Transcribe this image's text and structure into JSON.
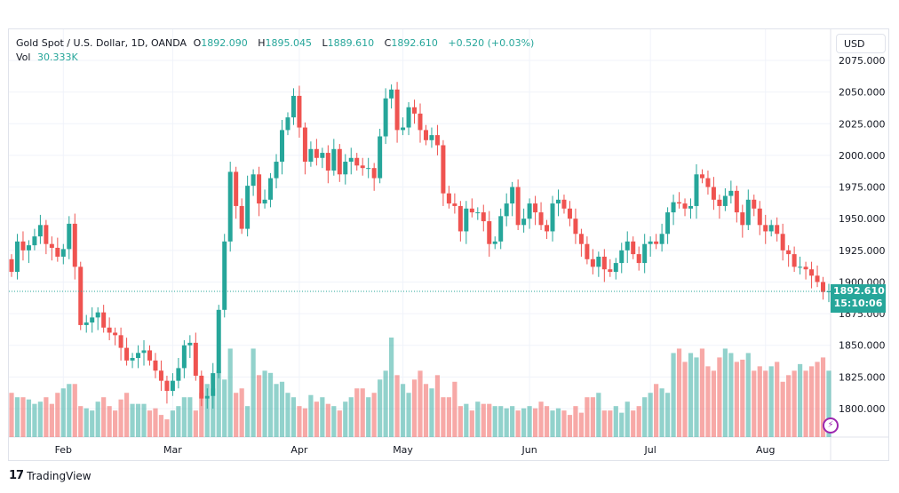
{
  "header": {
    "symbol": "Gold Spot / U.S. Dollar, 1D, OANDA",
    "o_label": "O",
    "open": "1892.090",
    "h_label": "H",
    "high": "1895.045",
    "l_label": "L",
    "low": "1889.610",
    "c_label": "C",
    "close": "1892.610",
    "change": "+0.520 (+0.03%)",
    "vol_label": "Vol",
    "vol": "30.333K"
  },
  "currency": "USD",
  "last_price": {
    "price": "1892.610",
    "countdown": "15:10:06"
  },
  "brand": "TradingView",
  "colors": {
    "up": "#26a69a",
    "down": "#ef5350",
    "grid": "#f0f3fa"
  },
  "chart_data": {
    "type": "candlestick",
    "title": "Gold Spot / U.S. Dollar, 1D, OANDA",
    "ylim": [
      1780,
      2085
    ],
    "yticks": [
      "2075.000",
      "2050.000",
      "2025.000",
      "2000.000",
      "1975.000",
      "1950.000",
      "1925.000",
      "1900.000",
      "1875.000",
      "1850.000",
      "1825.000",
      "1800.000"
    ],
    "ytick_values": [
      2075,
      2050,
      2025,
      2000,
      1975,
      1950,
      1925,
      1900,
      1875,
      1850,
      1825,
      1800
    ],
    "months": [
      {
        "label": "Feb",
        "index": 9
      },
      {
        "label": "Mar",
        "index": 28
      },
      {
        "label": "Apr",
        "index": 50
      },
      {
        "label": "May",
        "index": 68
      },
      {
        "label": "Jun",
        "index": 90
      },
      {
        "label": "Jul",
        "index": 111
      },
      {
        "label": "Aug",
        "index": 131
      }
    ],
    "first_open": 1918,
    "close": [
      1908,
      1932,
      1925,
      1929,
      1936,
      1945,
      1930,
      1927,
      1920,
      1926,
      1946,
      1912,
      1866,
      1868,
      1872,
      1876,
      1864,
      1860,
      1858,
      1848,
      1838,
      1840,
      1844,
      1846,
      1838,
      1830,
      1822,
      1814,
      1822,
      1832,
      1850,
      1852,
      1826,
      1808,
      1810,
      1828,
      1878,
      1932,
      1987,
      1960,
      1942,
      1976,
      1985,
      1962,
      1965,
      1982,
      1995,
      2020,
      2030,
      2047,
      2022,
      1995,
      2005,
      1998,
      2002,
      1988,
      2005,
      1985,
      1995,
      1998,
      1992,
      1990,
      1990,
      1982,
      2015,
      2045,
      2052,
      2020,
      2022,
      2038,
      2033,
      2020,
      2012,
      2016,
      2008,
      1970,
      1962,
      1960,
      1940,
      1958,
      1955,
      1955,
      1948,
      1930,
      1932,
      1952,
      1962,
      1975,
      1945,
      1950,
      1962,
      1955,
      1945,
      1940,
      1962,
      1965,
      1958,
      1950,
      1938,
      1930,
      1918,
      1912,
      1920,
      1910,
      1908,
      1915,
      1925,
      1932,
      1922,
      1915,
      1930,
      1932,
      1930,
      1938,
      1955,
      1963,
      1962,
      1958,
      1960,
      1985,
      1982,
      1975,
      1965,
      1960,
      1968,
      1972,
      1955,
      1945,
      1965,
      1958,
      1945,
      1940,
      1945,
      1938,
      1925,
      1922,
      1912,
      1912,
      1910,
      1905,
      1900,
      1892.09,
      1892.61
    ],
    "volume": [
      20,
      18,
      18,
      17,
      15,
      16,
      18,
      15,
      20,
      22,
      24,
      24,
      14,
      13,
      12,
      16,
      18,
      14,
      12,
      17,
      20,
      15,
      15,
      15,
      12,
      13,
      10,
      8,
      12,
      14,
      18,
      18,
      12,
      20,
      24,
      22,
      30,
      26,
      40,
      20,
      22,
      14,
      40,
      28,
      30,
      29,
      24,
      25,
      20,
      18,
      14,
      13,
      19,
      16,
      18,
      15,
      14,
      12,
      16,
      18,
      22,
      22,
      18,
      20,
      26,
      30,
      45,
      28,
      24,
      20,
      26,
      30,
      24,
      22,
      28,
      18,
      18,
      25,
      14,
      15,
      12,
      16,
      15,
      15,
      14,
      14,
      13,
      14,
      12,
      13,
      14,
      13,
      16,
      14,
      12,
      13,
      12,
      10,
      14,
      11,
      18,
      18,
      20,
      12,
      12,
      14,
      11,
      16,
      12,
      14,
      18,
      20,
      24,
      22,
      20,
      38,
      40,
      34,
      38,
      36,
      40,
      32,
      30,
      36,
      40,
      38,
      34,
      35,
      38,
      30,
      32,
      30,
      32,
      34,
      25,
      28,
      30,
      33,
      30,
      32,
      34,
      36,
      30
    ]
  }
}
